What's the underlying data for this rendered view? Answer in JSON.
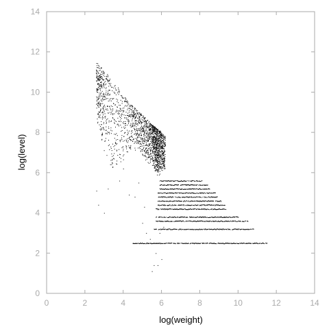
{
  "chart_data": {
    "type": "scatter",
    "title": "",
    "xlabel": "log(weight)",
    "ylabel": "log(level)",
    "xlim": [
      0,
      14
    ],
    "ylim": [
      0,
      14
    ],
    "x_ticks": [
      0,
      2,
      4,
      6,
      8,
      10,
      12,
      14
    ],
    "y_ticks": [
      0,
      2,
      4,
      6,
      8,
      10,
      12,
      14
    ],
    "grid": false,
    "legend": "none",
    "marker_color": "#000000",
    "axis_color": "#aaaaaa",
    "regions": {
      "diagonal_band": {
        "columns": [
          {
            "x": 2.6,
            "y_top": 11.5,
            "y_bottom": 8.6,
            "density": 40
          },
          {
            "x": 3.0,
            "y_top": 11.1,
            "y_bottom": 7.0,
            "density": 26
          },
          {
            "x": 3.5,
            "y_top": 10.5,
            "y_bottom": 6.0,
            "density": 18
          },
          {
            "x": 4.0,
            "y_top": 9.9,
            "y_bottom": 6.6,
            "density": 18
          },
          {
            "x": 4.5,
            "y_top": 9.3,
            "y_bottom": 7.2,
            "density": 26
          },
          {
            "x": 5.0,
            "y_top": 8.9,
            "y_bottom": 6.8,
            "density": 34
          },
          {
            "x": 5.5,
            "y_top": 8.4,
            "y_bottom": 6.3,
            "density": 48
          },
          {
            "x": 5.8,
            "y_top": 8.2,
            "y_bottom": 5.8,
            "density": 70
          },
          {
            "x": 6.2,
            "y_top": 7.8,
            "y_bottom": 6.2,
            "density": 40
          }
        ]
      },
      "stripes": [
        {
          "y": 5.6,
          "x_start": 5.9,
          "x_end": 8.1
        },
        {
          "y": 5.4,
          "x_start": 5.9,
          "x_end": 8.4
        },
        {
          "y": 5.2,
          "x_start": 5.9,
          "x_end": 8.5
        },
        {
          "y": 5.0,
          "x_start": 5.8,
          "x_end": 8.8
        },
        {
          "y": 4.8,
          "x_start": 5.8,
          "x_end": 8.9
        },
        {
          "y": 4.6,
          "x_start": 5.8,
          "x_end": 9.1
        },
        {
          "y": 4.4,
          "x_start": 5.8,
          "x_end": 9.3
        },
        {
          "y": 4.2,
          "x_start": 5.7,
          "x_end": 9.4
        },
        {
          "y": 3.8,
          "x_start": 5.7,
          "x_end": 10.0
        },
        {
          "y": 3.6,
          "x_start": 5.7,
          "x_end": 10.5
        },
        {
          "y": 3.2,
          "x_start": 5.6,
          "x_end": 10.8
        },
        {
          "y": 2.5,
          "x_start": 4.5,
          "x_end": 11.5
        }
      ],
      "sparse_points": [
        [
          2.6,
          5.1
        ],
        [
          2.7,
          4.4
        ],
        [
          3.0,
          4.0
        ],
        [
          3.2,
          5.2
        ],
        [
          4.5,
          2.5
        ],
        [
          4.6,
          4.8
        ],
        [
          5.0,
          3.5
        ],
        [
          5.2,
          3.0
        ],
        [
          5.4,
          2.7
        ],
        [
          5.5,
          1.1
        ],
        [
          5.6,
          1.4
        ],
        [
          5.7,
          2.0
        ],
        [
          5.8,
          1.4
        ],
        [
          6.0,
          1.7
        ],
        [
          5.9,
          3.0
        ],
        [
          6.1,
          3.3
        ],
        [
          4.8,
          5.5
        ],
        [
          4.0,
          6.2
        ],
        [
          3.4,
          6.5
        ],
        [
          3.8,
          5.6
        ],
        [
          4.3,
          4.9
        ],
        [
          5.1,
          4.3
        ]
      ]
    }
  }
}
